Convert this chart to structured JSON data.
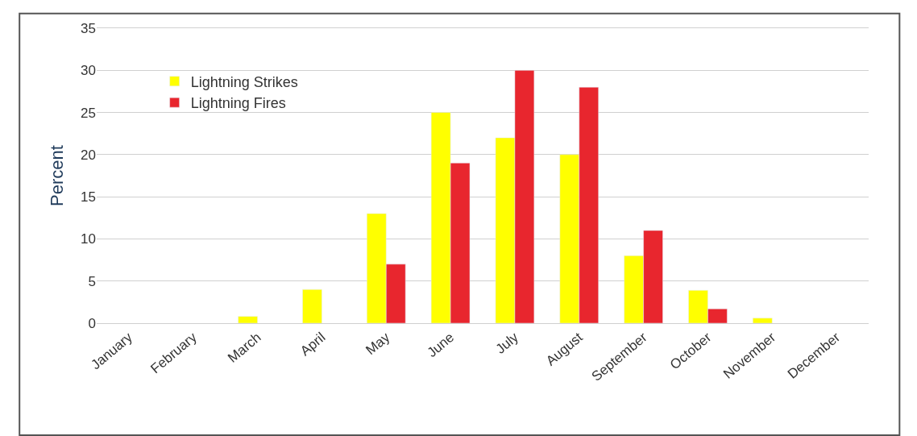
{
  "chart_data": {
    "type": "bar",
    "ylabel": "Percent",
    "categories": [
      "January",
      "February",
      "March",
      "April",
      "May",
      "June",
      "July",
      "August",
      "September",
      "October",
      "November",
      "December"
    ],
    "series": [
      {
        "name": "Lightning Strikes",
        "color": "#ffff00",
        "values": [
          null,
          null,
          0.8,
          4,
          13,
          25,
          22,
          20,
          8,
          3.9,
          0.6,
          null
        ]
      },
      {
        "name": "Lightning Fires",
        "color": "#e8262e",
        "values": [
          null,
          null,
          null,
          null,
          7,
          19,
          30,
          28,
          11,
          1.7,
          null,
          null
        ]
      }
    ],
    "ylim": [
      0,
      35
    ],
    "yticks": [
      0,
      5,
      10,
      15,
      20,
      25,
      30,
      35
    ],
    "grid": "y",
    "legend": "top left"
  }
}
